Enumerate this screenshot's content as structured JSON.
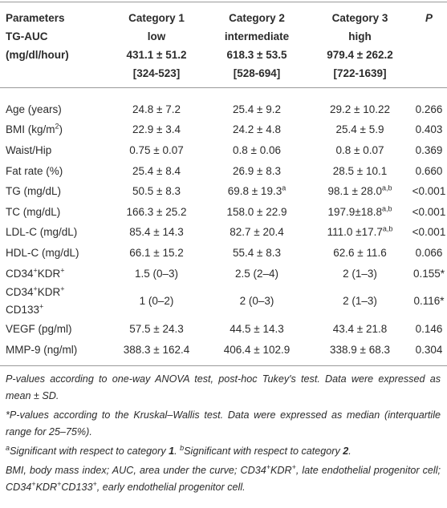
{
  "table": {
    "header": [
      [
        "Parameters",
        "TG-AUC",
        "(mg/dl/hour)"
      ],
      [
        "Category 1",
        "low",
        "431.1 ± 51.2",
        "[324-523]"
      ],
      [
        "Category 2",
        "intermediate",
        "618.3 ± 53.5",
        "[528-694]"
      ],
      [
        "Category 3",
        "high",
        "979.4 ± 262.2",
        "[722-1639]"
      ],
      [
        "P"
      ]
    ],
    "rows": [
      [
        "Age (years)",
        "24.8 ± 7.2",
        "25.4 ± 9.2",
        "29.2 ± 10.22",
        "0.266"
      ],
      [
        [
          {
            "t": "BMI (kg/m"
          },
          {
            "sup": "2"
          },
          {
            "t": ")"
          }
        ],
        "22.9 ± 3.4",
        "24.2 ± 4.8",
        "25.4 ± 5.9",
        "0.403"
      ],
      [
        "Waist/Hip",
        "0.75 ± 0.07",
        "0.8 ± 0.06",
        "0.8 ± 0.07",
        "0.369"
      ],
      [
        "Fat rate (%)",
        "25.4 ± 8.4",
        "26.9 ± 8.3",
        "28.5 ± 10.1",
        "0.660"
      ],
      [
        "TG (mg/dL)",
        "50.5 ± 8.3",
        [
          {
            "t": "69.8 ± 19.3"
          },
          {
            "sup": "a"
          }
        ],
        [
          {
            "t": "98.1 ± 28.0"
          },
          {
            "sup": "a,b"
          }
        ],
        "<0.001"
      ],
      [
        "TC (mg/dL)",
        "166.3 ± 25.2",
        "158.0 ± 22.9",
        [
          {
            "t": "197.9±18.8"
          },
          {
            "sup": "a,b"
          }
        ],
        "<0.001"
      ],
      [
        "LDL-C (mg/dL)",
        "85.4 ± 14.3",
        "82.7 ± 20.4",
        [
          {
            "t": "111.0 ±17.7"
          },
          {
            "sup": "a,b"
          }
        ],
        "<0.001"
      ],
      [
        "HDL-C (mg/dL)",
        "66.1 ± 15.2",
        "55.4 ± 8.3",
        "62.6 ± 11.6",
        "0.066"
      ],
      [
        [
          {
            "t": "CD34"
          },
          {
            "sup": "+"
          },
          {
            "t": "KDR"
          },
          {
            "sup": "+"
          }
        ],
        "1.5 (0–3)",
        "2.5 (2–4)",
        "2 (1–3)",
        "0.155*"
      ],
      [
        [
          [
            {
              "t": "CD34"
            },
            {
              "sup": "+"
            },
            {
              "t": "KDR"
            },
            {
              "sup": "+"
            }
          ],
          [
            {
              "t": "CD133"
            },
            {
              "sup": "+"
            }
          ]
        ],
        "1 (0–2)",
        "2 (0–3)",
        "2 (1–3)",
        "0.116*"
      ],
      [
        "VEGF (pg/ml)",
        "57.5 ± 24.3",
        "44.5 ± 14.3",
        "43.4 ± 21.8",
        "0.146"
      ],
      [
        "MMP-9 (ng/ml)",
        "388.3 ± 162.4",
        "406.4 ± 102.9",
        "338.9 ± 68.3",
        "0.304"
      ]
    ]
  },
  "notes": [
    "P-values according to one-way ANOVA test, post-hoc Tukey's test. Data were expressed as mean ± SD.",
    "*P-values according to the Kruskal–Wallis test. Data were expressed as median (interquartile range for 25–75%).",
    [
      {
        "sup": "a"
      },
      {
        "t": "Significant with respect to category "
      },
      {
        "b": "1"
      },
      {
        "t": ". "
      },
      {
        "sup": "b"
      },
      {
        "t": "Significant with respect to category "
      },
      {
        "b": "2"
      },
      {
        "t": "."
      }
    ],
    [
      {
        "t": "BMI, body mass index; AUC, area under the curve; CD34"
      },
      {
        "sup": "+"
      },
      {
        "t": "KDR"
      },
      {
        "sup": "+"
      },
      {
        "t": ", late endothelial progenitor cell; CD34"
      },
      {
        "sup": "+"
      },
      {
        "t": "KDR"
      },
      {
        "sup": "+"
      },
      {
        "t": "CD133"
      },
      {
        "sup": "+"
      },
      {
        "t": ", early endothelial progenitor cell."
      }
    ]
  ]
}
